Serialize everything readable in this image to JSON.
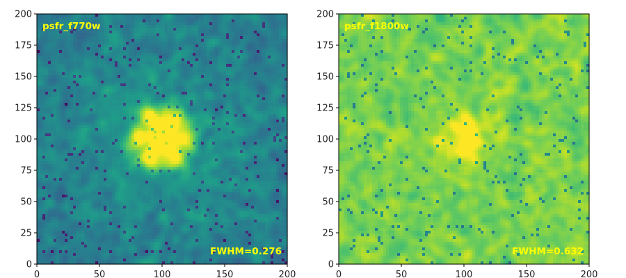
{
  "chart_data": [
    {
      "type": "heatmap",
      "colormap": "viridis",
      "labels": {
        "top_left": "psfr_f770w",
        "bottom_right": "FWHM=0.276"
      },
      "label_color": "#ffff00",
      "xlim": [
        0,
        200
      ],
      "ylim": [
        0,
        200
      ],
      "xticks": [
        0,
        50,
        100,
        150,
        200
      ],
      "yticks": [
        0,
        25,
        50,
        75,
        100,
        125,
        150,
        175,
        200
      ],
      "source_center": [
        100,
        100
      ],
      "base_level": 0.42,
      "noise_amplitude": 0.14,
      "core_radius": 10,
      "ring_radius": 20,
      "ring_lobes": 6,
      "halo_radius": 55
    },
    {
      "type": "heatmap",
      "colormap": "viridis",
      "labels": {
        "top_left": "psfr_f1800w",
        "bottom_right": "FWHM=0.632"
      },
      "label_color": "#ffff00",
      "xlim": [
        0,
        200
      ],
      "ylim": [
        0,
        200
      ],
      "xticks": [
        0,
        50,
        100,
        150,
        200
      ],
      "yticks": [
        0,
        25,
        50,
        75,
        100,
        125,
        150,
        175,
        200
      ],
      "source_center": [
        98,
        100
      ],
      "base_level": 0.8,
      "noise_amplitude": 0.16,
      "core_radius": 13,
      "ring_radius": 0,
      "ring_lobes": 0,
      "halo_radius": 0
    }
  ]
}
